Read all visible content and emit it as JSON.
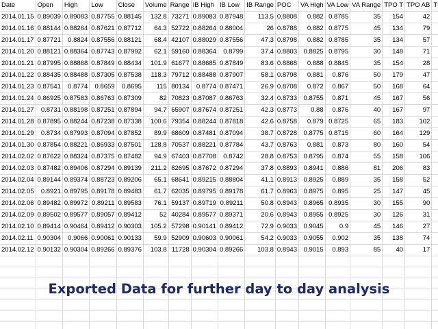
{
  "sheet": {
    "columns": [
      "Date",
      "Open",
      "High",
      "Low",
      "Close",
      "Volume",
      "Range",
      "IB High",
      "IB Low",
      "IB Range",
      "POC",
      "VA High",
      "VA Low",
      "VA Range",
      "TPO T",
      "TPO AB",
      "TPO BL"
    ],
    "rows": [
      [
        "2014.01.15",
        "0.89039",
        "0.89083",
        "0.87755",
        "0.88145",
        "132.8",
        "73271",
        "0.89083",
        "0.87948",
        "113.5",
        "0.8808",
        "0.882",
        "0.8785",
        "35",
        "154",
        "42",
        "72"
      ],
      [
        "2014.01.16",
        "0.88144",
        "0.88264",
        "0.87621",
        "0.87712",
        "64.3",
        "52722",
        "0.88264",
        "0.88004",
        "26",
        "0.8788",
        "0.882",
        "0.8775",
        "45",
        "134",
        "79",
        "41"
      ],
      [
        "2014.01.17",
        "0.87721",
        "0.8824",
        "0.87556",
        "0.88121",
        "68.4",
        "42107",
        "0.88029",
        "0.87556",
        "47.3",
        "0.8798",
        "0.882",
        "0.8785",
        "35",
        "134",
        "57",
        "53"
      ],
      [
        "2014.01.20",
        "0.88121",
        "0.88364",
        "0.87743",
        "0.87992",
        "62.1",
        "59160",
        "0.88364",
        "0.8799",
        "37.4",
        "0.8803",
        "0.8825",
        "0.8795",
        "30",
        "148",
        "71",
        "51"
      ],
      [
        "2014.01.21",
        "0.87995",
        "0.88868",
        "0.87849",
        "0.88434",
        "101.9",
        "61677",
        "0.88685",
        "0.87849",
        "83.6",
        "0.8868",
        "0.888",
        "0.8845",
        "35",
        "154",
        "28",
        "102"
      ],
      [
        "2014.01.22",
        "0.88435",
        "0.88488",
        "0.87305",
        "0.87538",
        "118.3",
        "79712",
        "0.88488",
        "0.87907",
        "58.1",
        "0.8798",
        "0.881",
        "0.876",
        "50",
        "179",
        "47",
        "108"
      ],
      [
        "2014.01.23",
        "0.87541",
        "0.8774",
        "0.8659",
        "0.8695",
        "115",
        "80134",
        "0.8774",
        "0.87471",
        "26.9",
        "0.8708",
        "0.872",
        "0.867",
        "50",
        "168",
        "64",
        "76"
      ],
      [
        "2014.01.24",
        "0.86925",
        "0.87583",
        "0.86763",
        "0.87309",
        "82",
        "70823",
        "0.87087",
        "0.86763",
        "32.4",
        "0.8733",
        "0.8755",
        "0.871",
        "45",
        "167",
        "56",
        "92"
      ],
      [
        "2014.01.27",
        "0.8731",
        "0.88198",
        "0.87251",
        "0.87894",
        "94.7",
        "65907",
        "0.87674",
        "0.87251",
        "42.3",
        "0.8773",
        "0.88",
        "0.876",
        "40",
        "167",
        "97",
        "46"
      ],
      [
        "2014.01.28",
        "0.87895",
        "0.88244",
        "0.87238",
        "0.87338",
        "100.6",
        "79354",
        "0.88244",
        "0.87818",
        "42.6",
        "0.8758",
        "0.879",
        "0.8725",
        "65",
        "183",
        "102",
        "61"
      ],
      [
        "2014.01.29",
        "0.8734",
        "0.87993",
        "0.87094",
        "0.87852",
        "89.9",
        "68609",
        "0.87481",
        "0.87094",
        "38.7",
        "0.8728",
        "0.8775",
        "0.8715",
        "60",
        "164",
        "129",
        "19"
      ],
      [
        "2014.01.30",
        "0.87854",
        "0.88221",
        "0.86933",
        "0.87501",
        "128.8",
        "70537",
        "0.88221",
        "0.87784",
        "43.7",
        "0.8763",
        "0.881",
        "0.873",
        "80",
        "160",
        "54",
        "90"
      ],
      [
        "2014.02.02",
        "0.87622",
        "0.88324",
        "0.87375",
        "0.87482",
        "94.9",
        "67403",
        "0.87708",
        "0.8742",
        "28.8",
        "0.8753",
        "0.8795",
        "0.874",
        "55",
        "158",
        "106",
        "28"
      ],
      [
        "2014.02.03",
        "0.87482",
        "0.89406",
        "0.87294",
        "0.89139",
        "211.2",
        "82695",
        "0.87672",
        "0.87294",
        "37.8",
        "0.8893",
        "0.8941",
        "0.886",
        "81",
        "206",
        "83",
        "95"
      ],
      [
        "2014.02.04",
        "0.89144",
        "0.89374",
        "0.88723",
        "0.89206",
        "65.1",
        "68641",
        "0.89215",
        "0.88804",
        "41.1",
        "0.8913",
        "0.8925",
        "0.889",
        "35",
        "158",
        "52",
        "80"
      ],
      [
        "2014.02.05",
        "0.8921",
        "0.89795",
        "0.89178",
        "0.89483",
        "61.7",
        "62035",
        "0.89795",
        "0.89178",
        "61.7",
        "0.8963",
        "0.8975",
        "0.895",
        "25",
        "147",
        "45",
        "68"
      ],
      [
        "2014.02.06",
        "0.89482",
        "0.89972",
        "0.89211",
        "0.89583",
        "76.1",
        "59137",
        "0.89719",
        "0.89211",
        "50.8",
        "0.8943",
        "0.8965",
        "0.8935",
        "30",
        "155",
        "90",
        "33"
      ],
      [
        "2014.02.09",
        "0.89502",
        "0.89577",
        "0.89057",
        "0.89412",
        "52",
        "40284",
        "0.89577",
        "0.89371",
        "20.6",
        "0.8943",
        "0.8955",
        "0.8925",
        "30",
        "126",
        "31",
        "74"
      ],
      [
        "2014.02.10",
        "0.89414",
        "0.90464",
        "0.89412",
        "0.90303",
        "105.2",
        "57298",
        "0.90141",
        "0.89412",
        "72.9",
        "0.9033",
        "0.9045",
        "0.9",
        "45",
        "146",
        "27",
        "94"
      ],
      [
        "2014.02.11",
        "0.90304",
        "0.9066",
        "0.90061",
        "0.90133",
        "59.9",
        "52909",
        "0.90603",
        "0.90061",
        "54.2",
        "0.9033",
        "0.9055",
        "0.902",
        "35",
        "138",
        "74",
        "46"
      ],
      [
        "2014.02.12",
        "0.90132",
        "0.90304",
        "0.89266",
        "0.89376",
        "103.8",
        "11728",
        "0.90304",
        "0.89266",
        "103.8",
        "0.8943",
        "0.9015",
        "0.893",
        "85",
        "40",
        "17",
        "8"
      ]
    ]
  },
  "caption": "Exported Data for further day to day analysis"
}
